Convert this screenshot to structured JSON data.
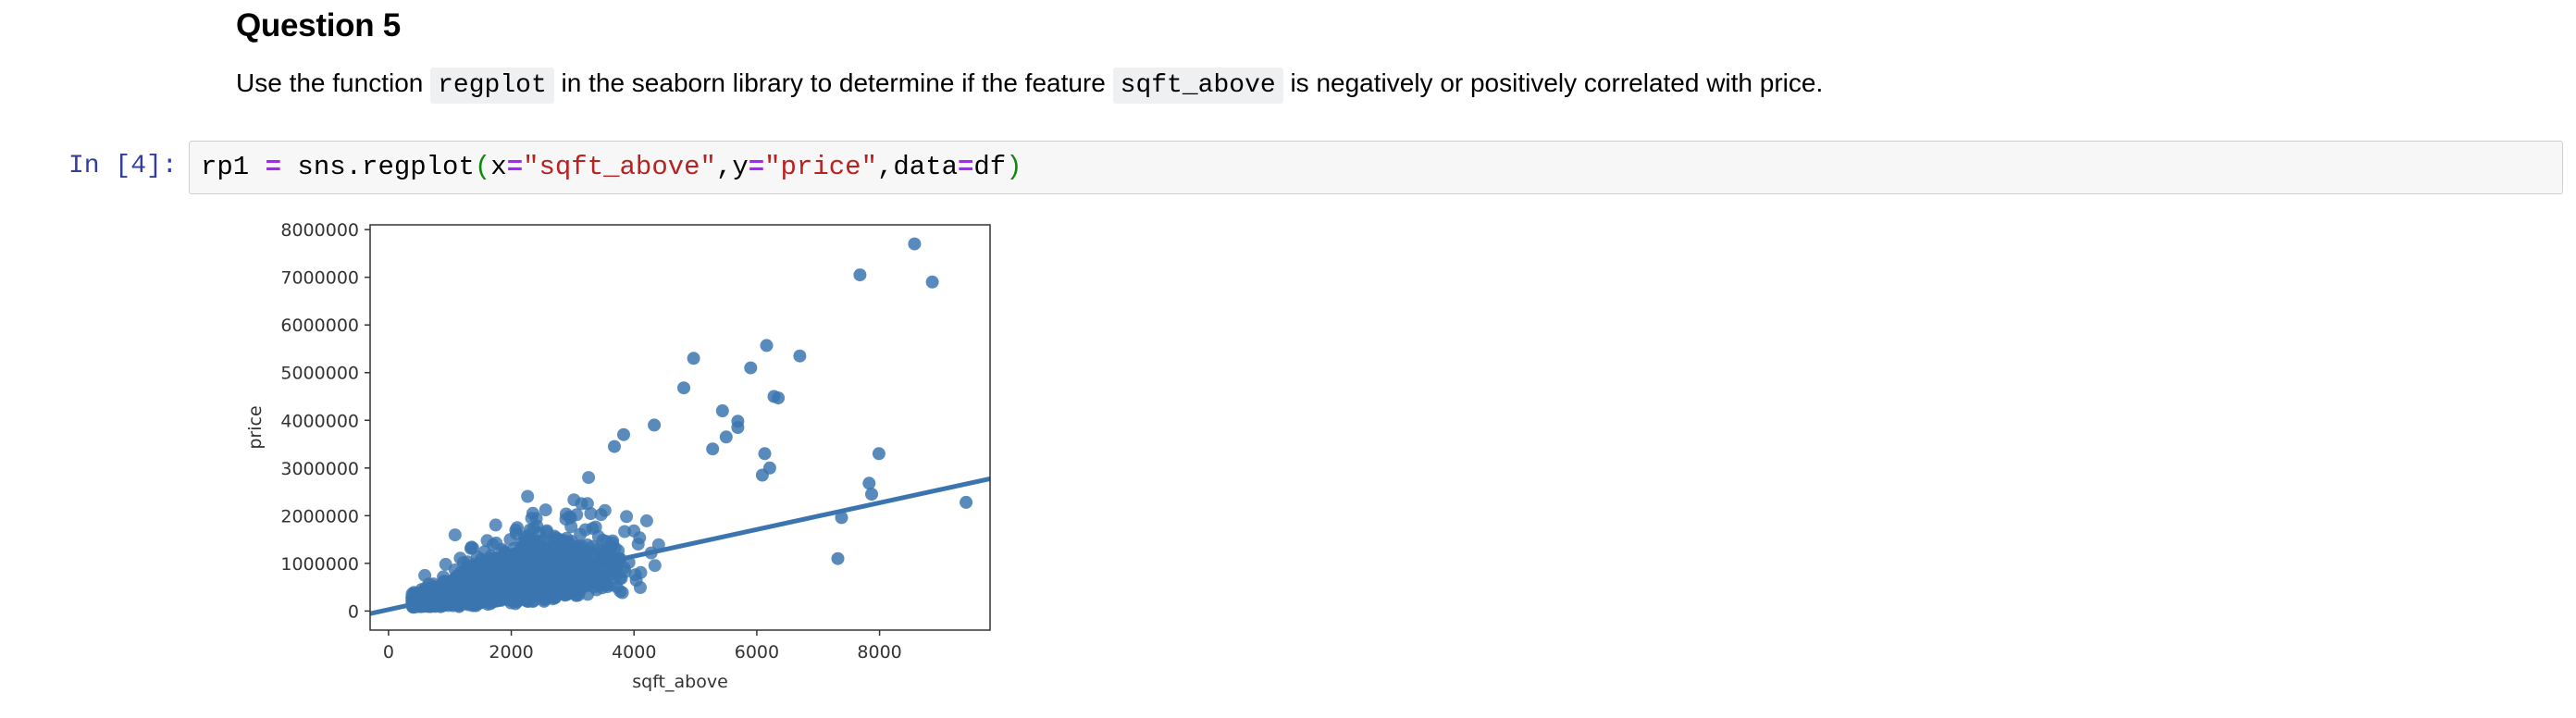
{
  "markdown": {
    "heading": "Question 5",
    "sentence": {
      "part1": "Use the function ",
      "code1": "regplot",
      "part2": " in the seaborn library to determine if the feature ",
      "code2": "sqft_above",
      "part3": " is negatively or positively correlated with price."
    }
  },
  "cell": {
    "prompt": "In [4]:",
    "tokens": {
      "t1": "rp1 ",
      "t2": "=",
      "t3": " sns.regplot",
      "t4": "(",
      "t5": "x",
      "t6": "=",
      "t7": "\"sqft_above\"",
      "t8": ",y",
      "t9": "=",
      "t10": "\"price\"",
      "t11": ",data",
      "t12": "=",
      "t13": "df",
      "t14": ")"
    }
  },
  "colors": {
    "point": "#3b75af",
    "line": "#3b75af",
    "prompt": "#303f9f",
    "string": "#ba2121",
    "operator": "#aa22ff"
  },
  "chart_data": {
    "type": "scatter",
    "title": "",
    "xlabel": "sqft_above",
    "ylabel": "price",
    "xlim": [
      -300,
      9800
    ],
    "ylim": [
      -400000,
      8100000
    ],
    "xticks": [
      "0",
      "2000",
      "4000",
      "6000",
      "8000"
    ],
    "yticks": [
      "0",
      "1000000",
      "2000000",
      "3000000",
      "4000000",
      "5000000",
      "6000000",
      "7000000",
      "8000000"
    ],
    "regression_line": {
      "slope": 280,
      "intercept": 30000
    },
    "outliers": [
      [
        8570,
        7700000
      ],
      [
        7680,
        7050000
      ],
      [
        8860,
        6900000
      ],
      [
        6160,
        5570000
      ],
      [
        4970,
        5300000
      ],
      [
        6700,
        5350000
      ],
      [
        5900,
        5100000
      ],
      [
        4810,
        4680000
      ],
      [
        6280,
        4500000
      ],
      [
        6350,
        4470000
      ],
      [
        5440,
        4200000
      ],
      [
        5690,
        3980000
      ],
      [
        5690,
        3850000
      ],
      [
        7990,
        3300000
      ],
      [
        7830,
        2680000
      ],
      [
        7870,
        2450000
      ],
      [
        9410,
        2280000
      ],
      [
        7380,
        1960000
      ],
      [
        7320,
        1100000
      ],
      [
        6130,
        3300000
      ],
      [
        6210,
        3000000
      ],
      [
        6090,
        2850000
      ],
      [
        5500,
        3650000
      ],
      [
        5280,
        3400000
      ],
      [
        4330,
        3900000
      ],
      [
        3680,
        3450000
      ],
      [
        3830,
        3700000
      ]
    ],
    "point_cloud": "dense cloud of ~21000 points concentrated between sqft_above 500–5000 and price 100000–3000000"
  }
}
